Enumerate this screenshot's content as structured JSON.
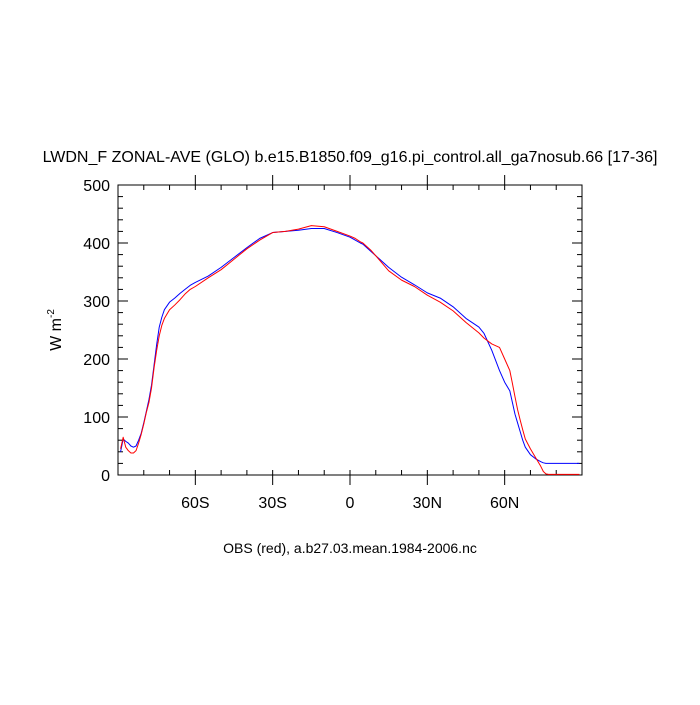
{
  "chart_data": {
    "type": "line",
    "title": "LWDN_F ZONAL-AVE (GLO) b.e15.B1850.f09_g16.pi_control.all_ga7nosub.66 [17-36]",
    "ylabel_base": "W m",
    "ylabel_exp": "-2",
    "caption": "OBS (red), a.b27.03.mean.1984-2006.nc",
    "xlim": [
      -90,
      90
    ],
    "ylim": [
      0,
      500
    ],
    "x_ticks": [
      {
        "value": -60,
        "label": "60S"
      },
      {
        "value": -30,
        "label": "30S"
      },
      {
        "value": 0,
        "label": "0"
      },
      {
        "value": 30,
        "label": "30N"
      },
      {
        "value": 60,
        "label": "60N"
      }
    ],
    "y_ticks": [
      {
        "value": 0,
        "label": "0"
      },
      {
        "value": 100,
        "label": "100"
      },
      {
        "value": 200,
        "label": "200"
      },
      {
        "value": 300,
        "label": "300"
      },
      {
        "value": 400,
        "label": "400"
      },
      {
        "value": 500,
        "label": "500"
      }
    ],
    "grid": false,
    "series": [
      {
        "color": "#0000ff",
        "x": [
          -89,
          -88,
          -87,
          -86,
          -85,
          -84,
          -83,
          -82,
          -81,
          -80,
          -79,
          -78,
          -77,
          -76,
          -75,
          -74,
          -73,
          -72,
          -70,
          -68,
          -66,
          -64,
          -62,
          -60,
          -55,
          -50,
          -45,
          -40,
          -35,
          -30,
          -25,
          -20,
          -15,
          -10,
          -5,
          0,
          2,
          4,
          5,
          6,
          8,
          10,
          15,
          20,
          25,
          30,
          35,
          40,
          45,
          50,
          52,
          55,
          58,
          60,
          62,
          63,
          64,
          65,
          66,
          67,
          68,
          70,
          72,
          74,
          75,
          76,
          77,
          78,
          79,
          80,
          82,
          84,
          86,
          88,
          89
        ],
        "y": [
          40,
          62,
          58,
          55,
          50,
          48,
          50,
          60,
          72,
          90,
          110,
          130,
          155,
          190,
          225,
          255,
          272,
          285,
          298,
          305,
          313,
          320,
          327,
          332,
          343,
          358,
          375,
          392,
          408,
          418,
          420,
          422,
          425,
          425,
          418,
          410,
          405,
          400,
          398,
          394,
          386,
          378,
          358,
          341,
          328,
          314,
          305,
          290,
          270,
          255,
          244,
          215,
          180,
          160,
          145,
          125,
          105,
          90,
          75,
          60,
          48,
          35,
          28,
          23,
          21,
          20,
          20,
          20,
          20,
          20,
          20,
          20,
          20,
          20,
          20
        ]
      },
      {
        "color": "#ff0000",
        "x": [
          -89,
          -88,
          -87,
          -86,
          -85,
          -84,
          -83,
          -82,
          -81,
          -80,
          -79,
          -78,
          -77,
          -76,
          -75,
          -74,
          -73,
          -72,
          -70,
          -68,
          -66,
          -64,
          -62,
          -60,
          -55,
          -50,
          -45,
          -40,
          -35,
          -30,
          -25,
          -20,
          -15,
          -10,
          -5,
          0,
          2,
          4,
          5,
          6,
          8,
          10,
          15,
          20,
          25,
          30,
          35,
          40,
          45,
          50,
          52,
          55,
          58,
          60,
          62,
          63,
          64,
          65,
          66,
          67,
          68,
          70,
          72,
          74,
          75,
          76,
          77,
          78,
          79,
          80,
          82,
          84,
          86,
          88,
          89
        ],
        "y": [
          45,
          65,
          48,
          42,
          38,
          38,
          42,
          55,
          70,
          88,
          108,
          125,
          150,
          185,
          215,
          240,
          258,
          270,
          285,
          293,
          302,
          312,
          320,
          325,
          340,
          354,
          372,
          390,
          405,
          418,
          420,
          424,
          430,
          428,
          420,
          412,
          408,
          402,
          400,
          396,
          388,
          378,
          352,
          336,
          325,
          310,
          298,
          283,
          263,
          245,
          236,
          226,
          220,
          200,
          180,
          158,
          135,
          113,
          95,
          78,
          62,
          45,
          30,
          15,
          6,
          2,
          1,
          1,
          1,
          1,
          1,
          1,
          1,
          1,
          1
        ]
      }
    ]
  }
}
